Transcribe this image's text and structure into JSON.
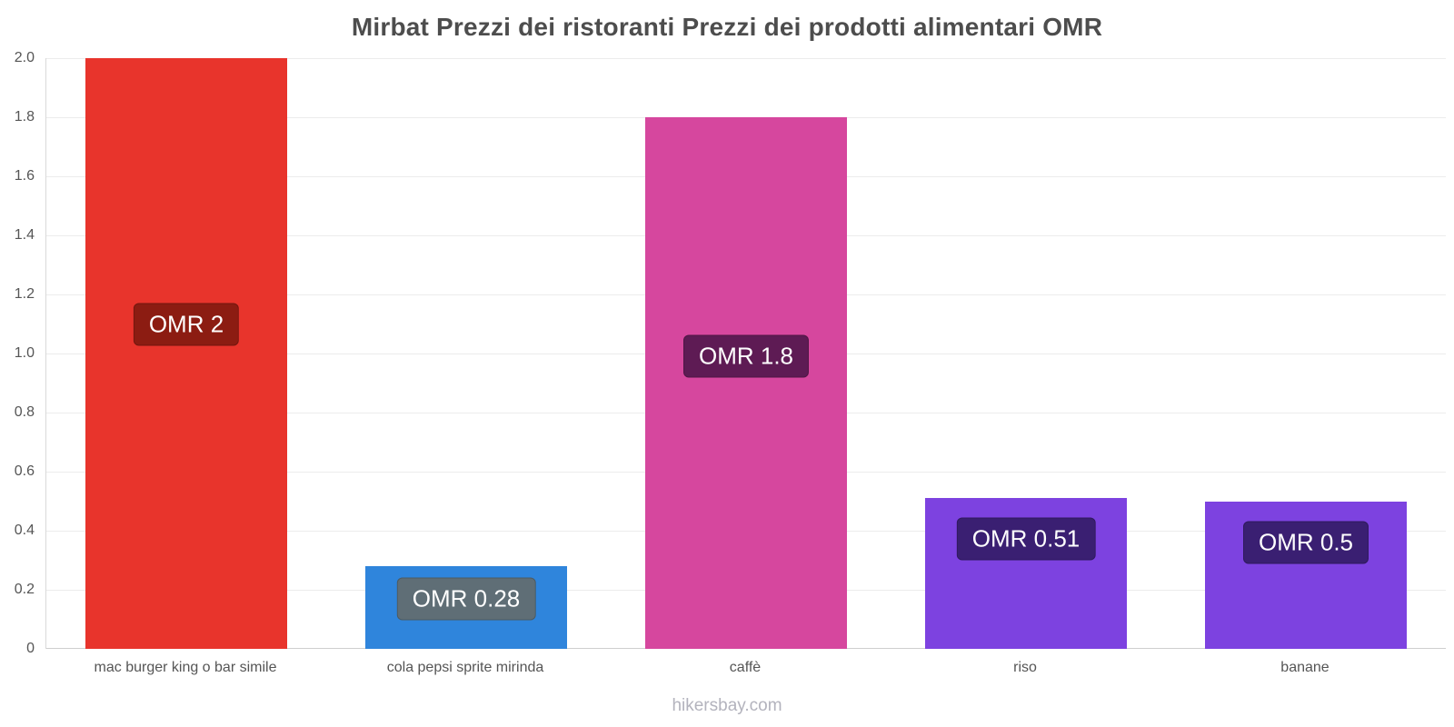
{
  "chart_data": {
    "type": "bar",
    "title": "Mirbat Prezzi dei ristoranti Prezzi dei prodotti alimentari OMR",
    "currency": "OMR",
    "categories": [
      "mac burger king o bar simile",
      "cola pepsi sprite mirinda",
      "caffè",
      "riso",
      "banane"
    ],
    "values": [
      2,
      0.28,
      1.8,
      0.51,
      0.5
    ],
    "value_labels": [
      "OMR 2",
      "OMR 0.28",
      "OMR 1.8",
      "OMR 0.51",
      "OMR 0.5"
    ],
    "bar_colors": [
      "#e8342c",
      "#2f85dc",
      "#d6479e",
      "#7d42e0",
      "#7d42e0"
    ],
    "label_colors": [
      "#8c1c12",
      "#5f6e76",
      "#5e1b54",
      "#3a1f72",
      "#3a1f72"
    ],
    "ylim": [
      0,
      2
    ],
    "ytick_step": 0.2,
    "yticks": [
      "0",
      "0.2",
      "0.4",
      "0.6",
      "0.8",
      "1.0",
      "1.2",
      "1.4",
      "1.6",
      "1.8",
      "2.0"
    ],
    "grid": true,
    "legend": false,
    "xlabel": "",
    "ylabel": ""
  },
  "footer": "hikersbay.com"
}
